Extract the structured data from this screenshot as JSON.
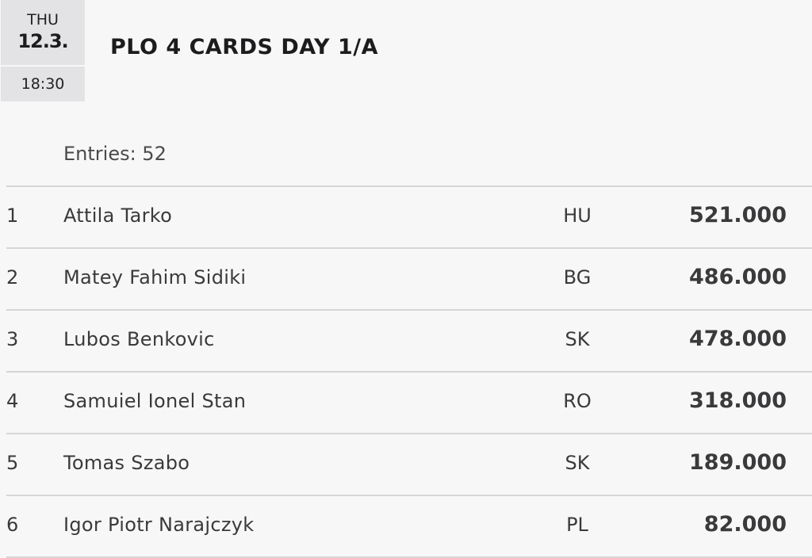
{
  "event": {
    "day_of_week": "THU",
    "date": "12.3.",
    "time": "18:30",
    "title": "PLO 4 CARDS DAY 1/A",
    "entries_label": "Entries: 52"
  },
  "results": [
    {
      "rank": "1",
      "name": "Attila Tarko",
      "country": "HU",
      "chips": "521.000"
    },
    {
      "rank": "2",
      "name": "Matey Fahim Sidiki",
      "country": "BG",
      "chips": "486.000"
    },
    {
      "rank": "3",
      "name": "Lubos Benkovic",
      "country": "SK",
      "chips": "478.000"
    },
    {
      "rank": "4",
      "name": "Samuiel Ionel Stan",
      "country": "RO",
      "chips": "318.000"
    },
    {
      "rank": "5",
      "name": "Tomas Szabo",
      "country": "SK",
      "chips": "189.000"
    },
    {
      "rank": "6",
      "name": "Igor Piotr Narajczyk",
      "country": "PL",
      "chips": "82.000"
    }
  ]
}
